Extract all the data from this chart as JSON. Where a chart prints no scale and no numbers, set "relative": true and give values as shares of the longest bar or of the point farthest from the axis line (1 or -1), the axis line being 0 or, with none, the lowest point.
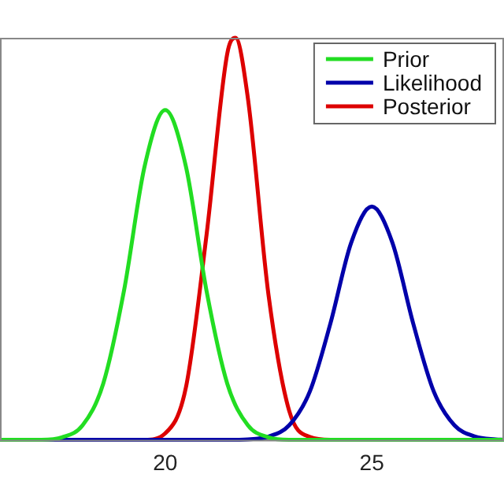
{
  "chart_data": {
    "type": "line",
    "relative": true,
    "xlim": [
      16,
      28.2
    ],
    "xticks": [
      20,
      25
    ],
    "tick_labels": "x",
    "grid": false,
    "legend": "top right",
    "marker": "none",
    "line_style": "solid",
    "series": [
      {
        "name": "Prior",
        "color": "#22dd22",
        "x": [
          16,
          17,
          17.5,
          18,
          18.5,
          19,
          19.5,
          20,
          20.5,
          21,
          21.5,
          22,
          22.5,
          23,
          28.2
        ],
        "values": [
          0,
          0,
          0.006,
          0.036,
          0.14,
          0.37,
          0.68,
          0.82,
          0.68,
          0.37,
          0.14,
          0.036,
          0.006,
          0,
          0
        ]
      },
      {
        "name": "Likelihood",
        "color": "#0000aa",
        "x": [
          16,
          21.5,
          22,
          22.5,
          23,
          23.5,
          24,
          24.5,
          25,
          25.5,
          26,
          26.5,
          27,
          27.5,
          28,
          28.2
        ],
        "values": [
          0,
          0,
          0.001,
          0.008,
          0.036,
          0.12,
          0.29,
          0.49,
          0.58,
          0.49,
          0.29,
          0.12,
          0.036,
          0.008,
          0.001,
          0
        ]
      },
      {
        "name": "Posterior",
        "color": "#dd0000",
        "x": [
          16,
          19.5,
          20,
          20.5,
          21,
          21.5,
          21.7,
          22,
          22.5,
          23,
          23.5,
          24,
          28.2
        ],
        "values": [
          0,
          0,
          0.016,
          0.13,
          0.51,
          0.96,
          1,
          0.85,
          0.36,
          0.072,
          0.007,
          0,
          0
        ]
      }
    ]
  }
}
